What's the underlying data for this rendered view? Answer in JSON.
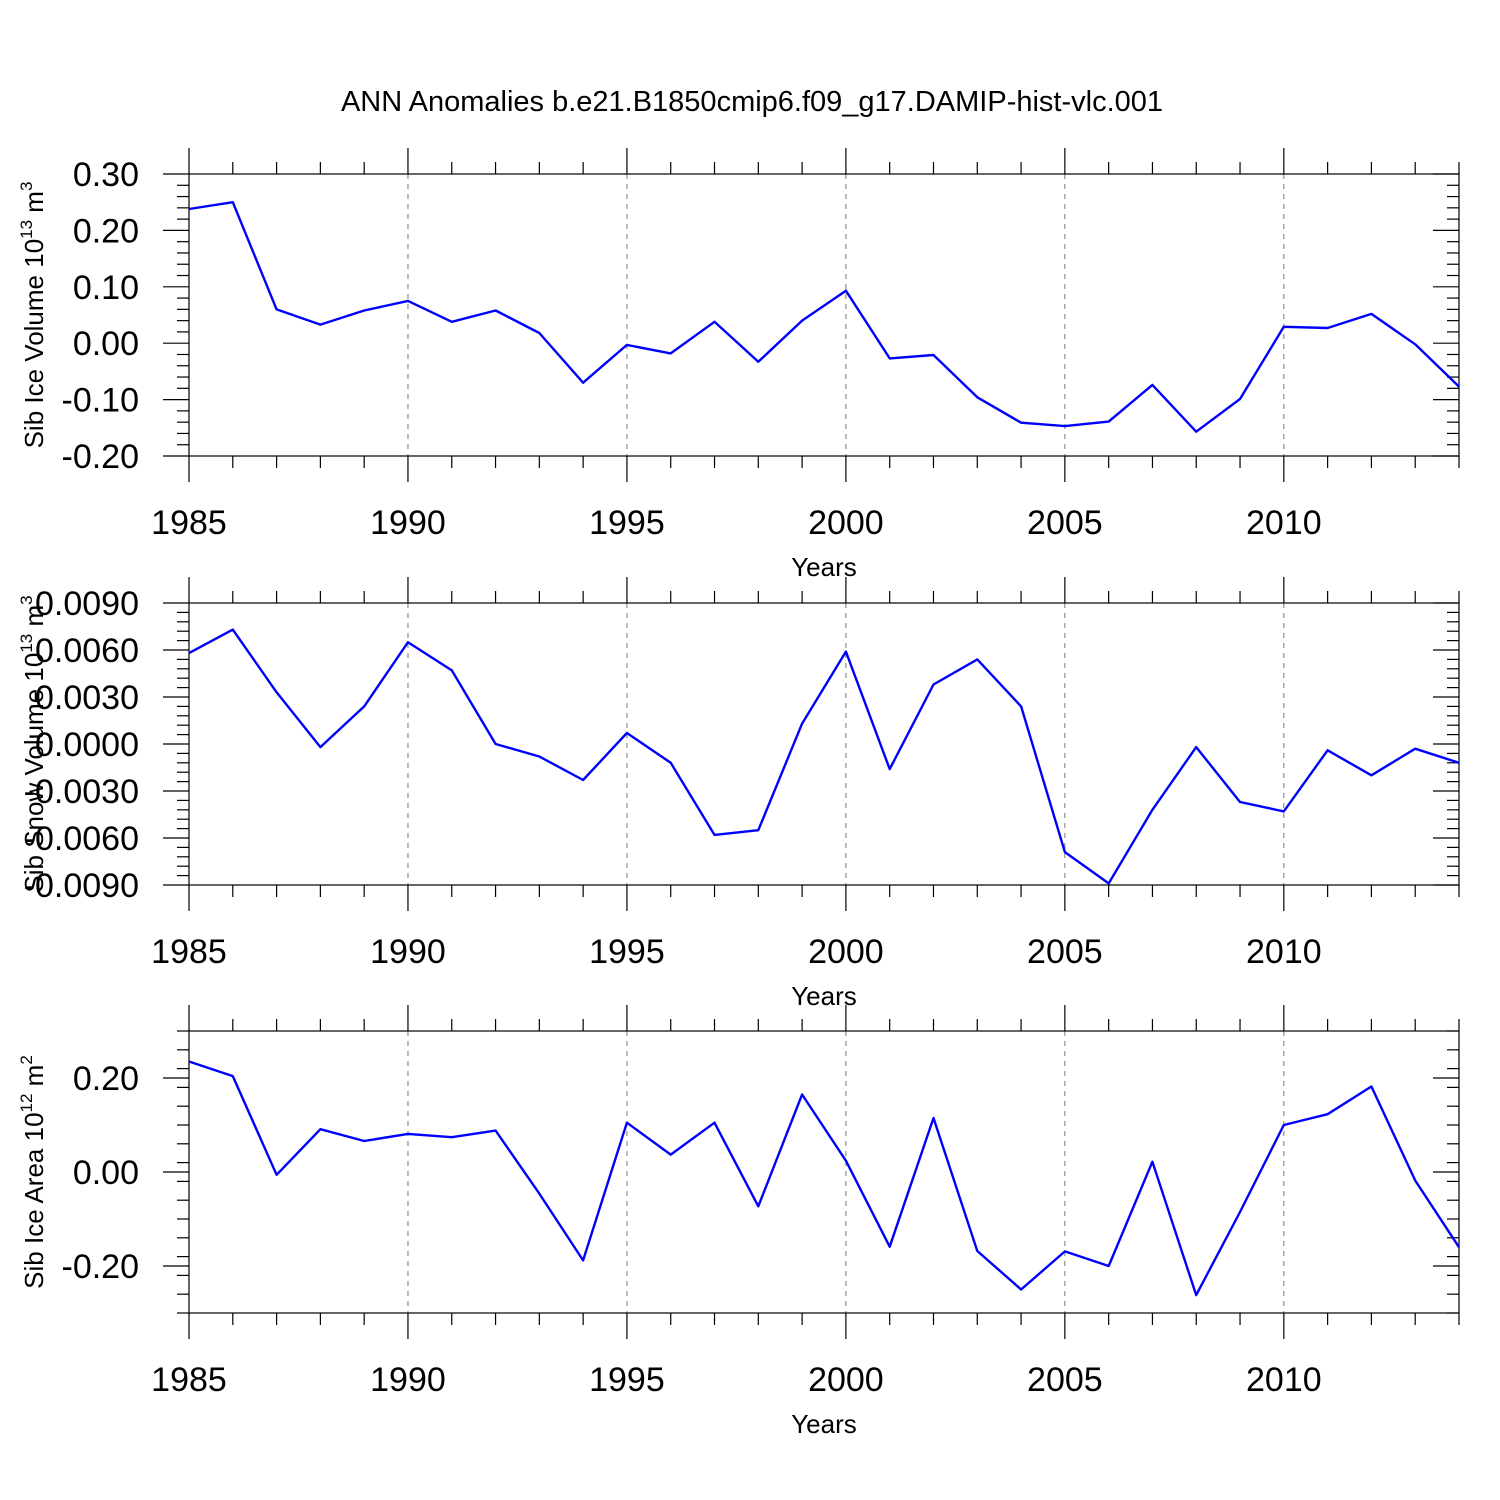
{
  "title": "ANN Anomalies b.e21.B1850cmip6.f09_g17.DAMIP-hist-vlc.001",
  "colors": {
    "line": "#0000ff",
    "grid": "#777777",
    "axis": "#000000"
  },
  "chart_data": [
    {
      "type": "line",
      "title": "ANN Anomalies b.e21.B1850cmip6.f09_g17.DAMIP-hist-vlc.001",
      "xlabel": "Years",
      "ylabel_text": "Sib Ice Volume 10",
      "ylabel_exp": "13",
      "ylabel_unit": " m",
      "ylabel_unit_exp": "3",
      "x": [
        1985,
        1986,
        1987,
        1988,
        1989,
        1990,
        1991,
        1992,
        1993,
        1994,
        1995,
        1996,
        1997,
        1998,
        1999,
        2000,
        2001,
        2002,
        2003,
        2004,
        2005,
        2006,
        2007,
        2008,
        2009,
        2010,
        2011,
        2012,
        2013,
        2014
      ],
      "values": [
        0.238,
        0.25,
        0.06,
        0.033,
        0.058,
        0.075,
        0.038,
        0.058,
        0.018,
        -0.07,
        -0.003,
        -0.018,
        0.038,
        -0.033,
        0.04,
        0.093,
        -0.027,
        -0.021,
        -0.096,
        -0.141,
        -0.147,
        -0.139,
        -0.074,
        -0.157,
        -0.099,
        0.029,
        0.027,
        0.052,
        -0.002,
        -0.077
      ],
      "xlim": [
        1985,
        2014
      ],
      "ylim": [
        -0.2,
        0.3
      ],
      "yticks": [
        0.3,
        0.2,
        0.1,
        0.0,
        -0.1,
        -0.2
      ],
      "ytick_labels": [
        "0.30",
        "0.20",
        "0.10",
        "0.00",
        "-0.10",
        "-0.20"
      ],
      "xticks": [
        1985,
        1990,
        1995,
        2000,
        2005,
        2010
      ],
      "xtick_labels": [
        "1985",
        "1990",
        "1995",
        "2000",
        "2005",
        "2010"
      ],
      "grid": "vertical-dashed"
    },
    {
      "type": "line",
      "xlabel": "Years",
      "ylabel_text": "Sib Snow Volume 10",
      "ylabel_exp": "13",
      "ylabel_unit": " m",
      "ylabel_unit_exp": "3",
      "x": [
        1985,
        1986,
        1987,
        1988,
        1989,
        1990,
        1991,
        1992,
        1993,
        1994,
        1995,
        1996,
        1997,
        1998,
        1999,
        2000,
        2001,
        2002,
        2003,
        2004,
        2005,
        2006,
        2007,
        2008,
        2009,
        2010,
        2011,
        2012,
        2013,
        2014
      ],
      "values": [
        0.0058,
        0.0073,
        0.0033,
        -0.0002,
        0.0024,
        0.0065,
        0.0047,
        0.0,
        -0.0008,
        -0.0023,
        0.0007,
        -0.0012,
        -0.0058,
        -0.0055,
        0.0013,
        0.0059,
        -0.0016,
        0.0038,
        0.0054,
        0.0024,
        -0.0069,
        -0.0089,
        -0.0042,
        -0.0002,
        -0.0037,
        -0.0043,
        -0.0004,
        -0.002,
        -0.0003,
        -0.0012
      ],
      "xlim": [
        1985,
        2014
      ],
      "ylim": [
        -0.009,
        0.009
      ],
      "yticks": [
        0.009,
        0.006,
        0.003,
        0.0,
        -0.003,
        -0.006,
        -0.009
      ],
      "ytick_labels": [
        "0.0090",
        "0.0060",
        "0.0030",
        "0.0000",
        "-0.0030",
        "-0.0060",
        "-0.0090"
      ],
      "xticks": [
        1985,
        1990,
        1995,
        2000,
        2005,
        2010
      ],
      "xtick_labels": [
        "1985",
        "1990",
        "1995",
        "2000",
        "2005",
        "2010"
      ],
      "grid": "vertical-dashed"
    },
    {
      "type": "line",
      "xlabel": "Years",
      "ylabel_text": "Sib Ice Area 10",
      "ylabel_exp": "12",
      "ylabel_unit": " m",
      "ylabel_unit_exp": "2",
      "x": [
        1985,
        1986,
        1987,
        1988,
        1989,
        1990,
        1991,
        1992,
        1993,
        1994,
        1995,
        1996,
        1997,
        1998,
        1999,
        2000,
        2001,
        2002,
        2003,
        2004,
        2005,
        2006,
        2007,
        2008,
        2009,
        2010,
        2011,
        2012,
        2013,
        2014
      ],
      "values": [
        0.235,
        0.204,
        -0.006,
        0.091,
        0.066,
        0.081,
        0.074,
        0.088,
        -0.046,
        -0.188,
        0.105,
        0.037,
        0.105,
        -0.073,
        0.165,
        0.024,
        -0.159,
        0.115,
        -0.168,
        -0.25,
        -0.169,
        -0.2,
        0.022,
        -0.262,
        -0.085,
        0.1,
        0.123,
        0.182,
        -0.018,
        -0.16
      ],
      "xlim": [
        1985,
        2014
      ],
      "ylim": [
        -0.3,
        0.3
      ],
      "yticks": [
        0.2,
        0.0,
        -0.2
      ],
      "ytick_labels": [
        "0.20",
        "0.00",
        "-0.20"
      ],
      "xticks": [
        1985,
        1990,
        1995,
        2000,
        2005,
        2010
      ],
      "xtick_labels": [
        "1985",
        "1990",
        "1995",
        "2000",
        "2005",
        "2010"
      ],
      "grid": "vertical-dashed"
    }
  ]
}
